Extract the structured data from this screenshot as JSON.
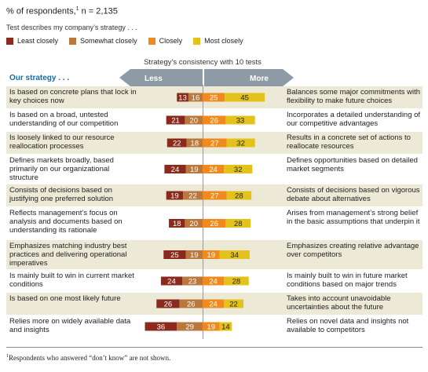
{
  "header": {
    "respondents_prefix": "% of respondents,",
    "respondents_sup": "1",
    "respondents_suffix": " n = 2,135",
    "test_caption": "Test describes my company’s strategy . . ."
  },
  "legend": [
    {
      "label": "Least closely",
      "color": "#8b2a1c"
    },
    {
      "label": "Somewhat closely",
      "color": "#b9783e"
    },
    {
      "label": "Closely",
      "color": "#f08a1e"
    },
    {
      "label": "Most closely",
      "color": "#e3c21c"
    }
  ],
  "consistency_title": "Strategy’s consistency with 10 tests",
  "arrows": {
    "less": "Less",
    "more": "More"
  },
  "strategy_label": "Our strategy . . .",
  "chart_data": {
    "type": "bar",
    "stacked": "diverging",
    "series": [
      {
        "name": "Least closely",
        "color": "#8b2a1c",
        "values": [
          13,
          21,
          22,
          24,
          19,
          18,
          25,
          24,
          26,
          36
        ]
      },
      {
        "name": "Somewhat closely",
        "color": "#b9783e",
        "values": [
          16,
          20,
          18,
          19,
          22,
          20,
          19,
          23,
          26,
          29
        ]
      },
      {
        "name": "Closely",
        "color": "#f08a1e",
        "values": [
          25,
          26,
          27,
          24,
          27,
          26,
          19,
          24,
          24,
          19
        ]
      },
      {
        "name": "Most closely",
        "color": "#e3c21c",
        "values": [
          45,
          33,
          32,
          32,
          28,
          28,
          34,
          28,
          22,
          14
        ]
      }
    ],
    "left_statements": [
      "Is based on concrete plans that lock in key choices now",
      "Is based on a broad, untested understanding of our competition",
      "Is loosely linked to our resource reallocation processes",
      "Defines markets broadly, based primarily on our organizational structure",
      "Consists of decisions based on justifying one preferred solution",
      "Reflects management’s focus on analysis and documents based on understanding its rationale",
      "Emphasizes matching industry best practices and delivering operational imperatives",
      "Is mainly built to win in current market conditions",
      "Is based on one most likely future",
      "Relies more on widely available data and insights"
    ],
    "right_statements": [
      "Balances some major commitments with flexibility to make future choices",
      "Incorporates a detailed understanding of our competitive advantages",
      "Results in a concrete set of actions to reallocate resources",
      "Defines opportunities based on detailed market segments",
      "Consists of decisions based on vigorous debate about alternatives",
      "Arises from management’s strong belief in the basic assumptions that underpin it",
      "Emphasizes creating relative advantage over competitors",
      "Is mainly built to win in future market conditions based on major trends",
      "Takes into account unavoidable uncertainties about the future",
      "Relies on novel data and insights not available to competitors"
    ]
  },
  "footnote": {
    "sup": "1",
    "text": "Respondents who answered “don’t know” are not shown."
  }
}
